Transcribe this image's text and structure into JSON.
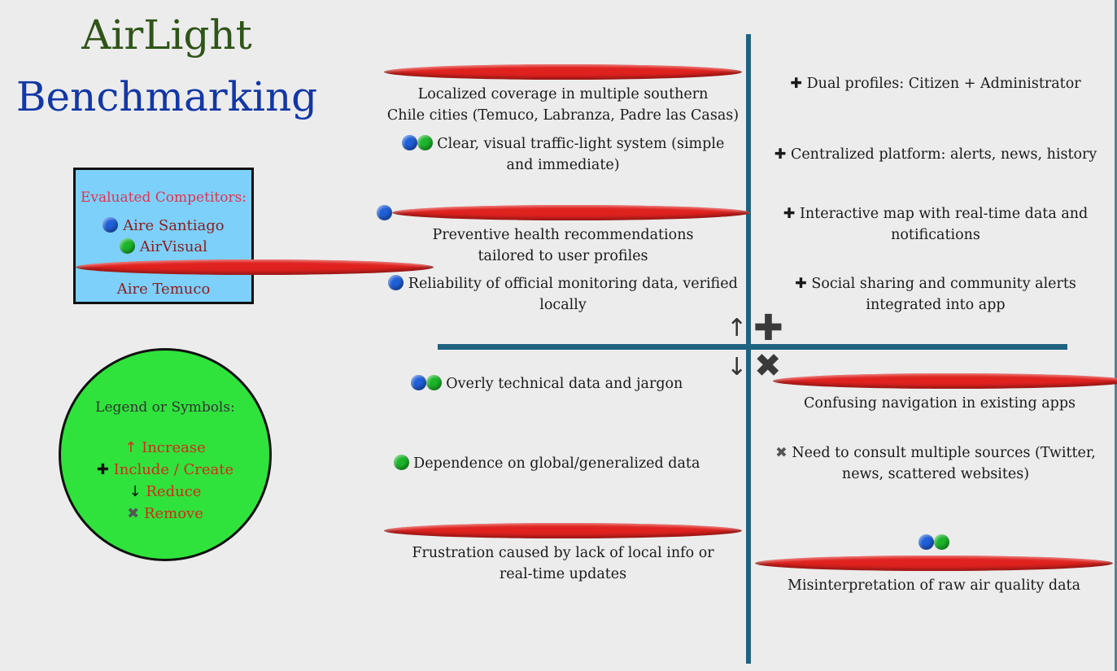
{
  "title": {
    "line1": "AirLight",
    "line2": "Benchmarking"
  },
  "competitors": {
    "heading": "Evaluated Competitors:",
    "items": [
      "Aire Santiago",
      "AirVisual",
      "Aire Temuco"
    ]
  },
  "legend": {
    "heading": "Legend or Symbols:",
    "increase_symbol": "↑",
    "increase": "Increase",
    "include_symbol": "✚",
    "include": "Include / Create",
    "reduce_symbol": "↓",
    "reduce": "Reduce",
    "remove_symbol": "✖",
    "remove": "Remove"
  },
  "axis_symbols": {
    "up": "↑",
    "down": "↓",
    "plus": "✚",
    "x": "✖"
  },
  "quadrants": {
    "raise": [
      {
        "line1": "Localized coverage in multiple southern",
        "line2": "Chile cities (Temuco, Labranza, Padre las Casas)"
      },
      {
        "line1": "Clear, visual traffic-light system (simple",
        "line2": "and immediate)"
      },
      {
        "line1": "Preventive health recommendations",
        "line2": "tailored to user profiles"
      },
      {
        "line1": "Reliability of official monitoring data, verified",
        "line2": "locally"
      }
    ],
    "create": [
      {
        "symbol": "✚",
        "line1": "Dual profiles: Citizen + Administrator"
      },
      {
        "symbol": "✚",
        "line1": "Centralized platform: alerts, news, history"
      },
      {
        "symbol": "✚",
        "line1": "Interactive map with real-time data and",
        "line2": "notifications"
      },
      {
        "symbol": "✚",
        "line1": "Social sharing and community alerts",
        "line2": "integrated into app"
      }
    ],
    "reduce": [
      {
        "line1": "Overly technical data and jargon"
      },
      {
        "line1": "Dependence on global/generalized data"
      },
      {
        "line1": "Frustration caused by lack of local info or",
        "line2": "real-time updates"
      }
    ],
    "eliminate": [
      {
        "line1": "Confusing navigation in existing apps"
      },
      {
        "symbol": "✖",
        "line1": "Need to consult multiple sources (Twitter,",
        "line2": "news, scattered websites)"
      },
      {
        "line1": "Misinterpretation of raw air quality data"
      }
    ]
  },
  "colors": {
    "aire_santiago": "#1f5fd8",
    "airvisual": "#1bb52a",
    "aire_temuco": "#e0221f",
    "axis": "#1f6382"
  }
}
